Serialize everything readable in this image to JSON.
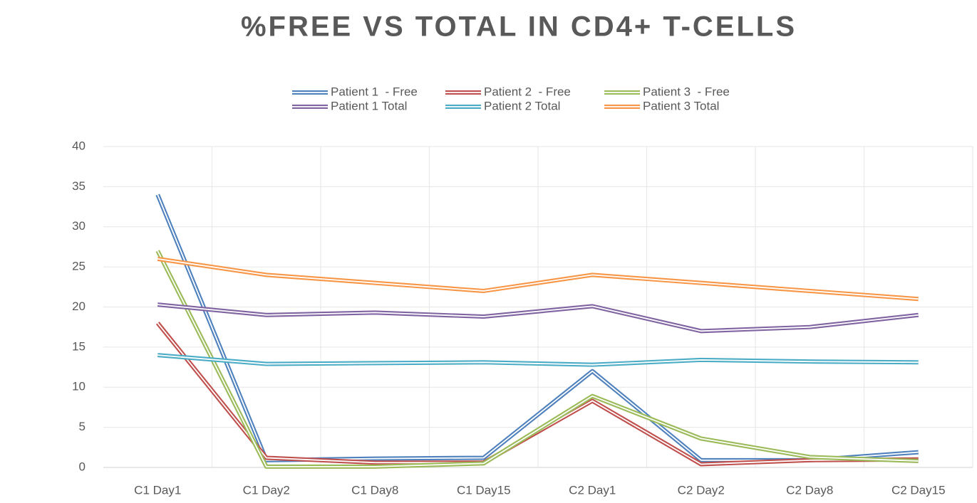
{
  "chart_data": {
    "type": "line",
    "title": "%FREE VS TOTAL IN CD4+ T-CELLS",
    "categories": [
      "C1 Day1",
      "C1 Day2",
      "C1 Day8",
      "C1 Day15",
      "C2 Day1",
      "C2 Day2",
      "C2 Day8",
      "C2 Day15"
    ],
    "series": [
      {
        "name": "Patient 1  - Free",
        "color": "#4f81bd",
        "values": [
          34,
          0.9,
          1.1,
          1.2,
          12,
          0.9,
          0.9,
          1.9
        ]
      },
      {
        "name": "Patient 2  - Free",
        "color": "#c0504d",
        "values": [
          18,
          1.2,
          0.6,
          0.6,
          8.3,
          0.4,
          0.9,
          1.0
        ]
      },
      {
        "name": "Patient 3  - Free",
        "color": "#9bbb59",
        "values": [
          27,
          0.1,
          0.1,
          0.5,
          8.9,
          3.6,
          1.3,
          0.8
        ]
      },
      {
        "name": "Patient 1 Total",
        "color": "#8064a2",
        "values": [
          20.3,
          19,
          19.3,
          18.8,
          20.1,
          17,
          17.5,
          19
        ]
      },
      {
        "name": "Patient 2 Total",
        "color": "#4bacc6",
        "values": [
          14,
          12.9,
          13,
          13.1,
          12.8,
          13.4,
          13.2,
          13.1
        ]
      },
      {
        "name": "Patient 3 Total",
        "color": "#f79646",
        "values": [
          26,
          24,
          23,
          22,
          24,
          23,
          22,
          21
        ]
      }
    ],
    "ylim": [
      0,
      40
    ],
    "yticks": [
      0,
      5,
      10,
      15,
      20,
      25,
      30,
      35,
      40
    ],
    "grid": true,
    "legend": "top"
  }
}
